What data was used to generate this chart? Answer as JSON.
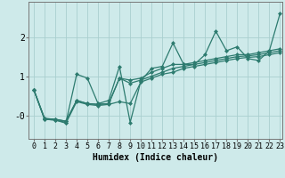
{
  "xlabel": "Humidex (Indice chaleur)",
  "ylabel": "",
  "xlim": [
    -0.5,
    23.2
  ],
  "ylim": [
    -0.6,
    2.9
  ],
  "bg_color": "#ceeaea",
  "line_color": "#2d7b6f",
  "grid_color": "#aacfcf",
  "series": [
    [
      0.65,
      -0.1,
      -0.12,
      -0.18,
      1.05,
      0.95,
      0.3,
      0.38,
      1.25,
      -0.18,
      0.88,
      1.2,
      1.25,
      1.85,
      1.3,
      1.3,
      1.55,
      2.15,
      1.65,
      1.75,
      1.45,
      1.4,
      1.65,
      2.6
    ],
    [
      0.65,
      -0.08,
      -0.1,
      -0.15,
      0.38,
      0.3,
      0.28,
      0.3,
      0.95,
      0.9,
      0.95,
      1.1,
      1.2,
      1.3,
      1.3,
      1.35,
      1.4,
      1.45,
      1.5,
      1.55,
      1.55,
      1.6,
      1.65,
      1.7
    ],
    [
      0.65,
      -0.08,
      -0.1,
      -0.15,
      0.38,
      0.3,
      0.28,
      0.3,
      0.95,
      0.82,
      0.9,
      1.0,
      1.1,
      1.2,
      1.25,
      1.3,
      1.35,
      1.4,
      1.45,
      1.5,
      1.52,
      1.55,
      1.6,
      1.65
    ],
    [
      0.65,
      -0.1,
      -0.12,
      -0.2,
      0.35,
      0.28,
      0.25,
      0.28,
      0.35,
      0.3,
      0.85,
      0.95,
      1.05,
      1.1,
      1.2,
      1.25,
      1.3,
      1.35,
      1.4,
      1.45,
      1.48,
      1.5,
      1.55,
      1.6
    ]
  ],
  "yticks": [
    0.0,
    1.0,
    2.0
  ],
  "ytick_labels": [
    "-0",
    "1",
    "2"
  ],
  "xticks": [
    0,
    1,
    2,
    3,
    4,
    5,
    6,
    7,
    8,
    9,
    10,
    11,
    12,
    13,
    14,
    15,
    16,
    17,
    18,
    19,
    20,
    21,
    22,
    23
  ],
  "marker": "D",
  "markersize": 2.0,
  "linewidth": 0.9,
  "xlabel_fontsize": 7,
  "tick_fontsize": 6
}
